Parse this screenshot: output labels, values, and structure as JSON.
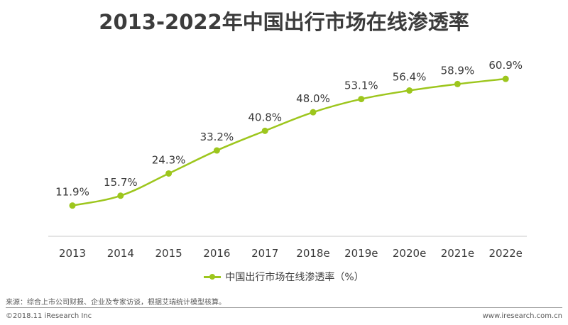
{
  "title": "2013-2022年中国出行市场在线渗透率",
  "legend": {
    "label": "中国出行市场在线渗透率（%）"
  },
  "colors": {
    "series": "#9dc61d",
    "axis": "#c8c8c8"
  },
  "chart_data": {
    "type": "line",
    "title": "2013-2022年中国出行市场在线渗透率",
    "categories": [
      "2013",
      "2014",
      "2015",
      "2016",
      "2017",
      "2018e",
      "2019e",
      "2020e",
      "2021e",
      "2022e"
    ],
    "series": [
      {
        "name": "中国出行市场在线渗透率（%）",
        "values": [
          11.9,
          15.7,
          24.3,
          33.2,
          40.8,
          48.0,
          53.1,
          56.4,
          58.9,
          60.9
        ],
        "labels": [
          "11.9%",
          "15.7%",
          "24.3%",
          "33.2%",
          "40.8%",
          "48.0%",
          "53.1%",
          "56.4%",
          "58.9%",
          "60.9%"
        ]
      }
    ],
    "ylim": [
      0,
      70
    ],
    "grid": false,
    "legend_position": "bottom",
    "xlabel": "",
    "ylabel": ""
  },
  "footer": {
    "source": "来源：综合上市公司财报、企业及专家访谈，根据艾瑞统计模型核算。",
    "copyright": "©2018.11 iResearch Inc",
    "website": "www.iresearch.com.cn"
  }
}
